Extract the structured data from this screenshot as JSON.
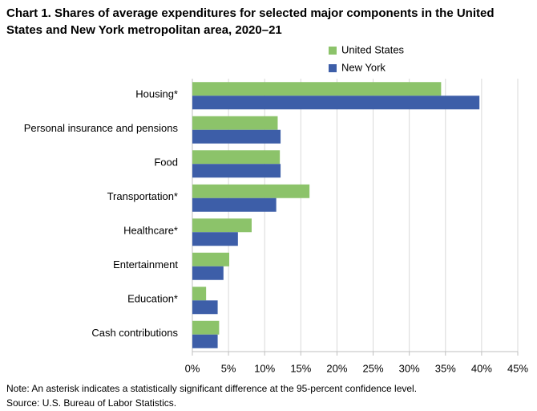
{
  "chart_data": {
    "type": "hbar",
    "title": "Chart 1. Shares of average expenditures for selected major components in the United States and New York metropolitan area, 2020–21",
    "categories": [
      "Housing*",
      "Personal insurance and pensions",
      "Food",
      "Transportation*",
      "Healthcare*",
      "Entertainment",
      "Education*",
      "Cash contributions"
    ],
    "series": [
      {
        "name": "United States",
        "color": "#8cc36a",
        "values": [
          34.4,
          11.8,
          12.1,
          16.2,
          8.2,
          5.1,
          1.9,
          3.7
        ]
      },
      {
        "name": "New York",
        "color": "#3d5ea8",
        "values": [
          39.7,
          12.2,
          12.2,
          11.6,
          6.3,
          4.3,
          3.5,
          3.5
        ]
      }
    ],
    "xlim": [
      0,
      45
    ],
    "xticks": [
      {
        "value": 0,
        "label": "0%"
      },
      {
        "value": 5,
        "label": "5%"
      },
      {
        "value": 10,
        "label": "10%"
      },
      {
        "value": 15,
        "label": "15%"
      },
      {
        "value": 20,
        "label": "20%"
      },
      {
        "value": 25,
        "label": "25%"
      },
      {
        "value": 30,
        "label": "30%"
      },
      {
        "value": 35,
        "label": "35%"
      },
      {
        "value": 40,
        "label": "40%"
      },
      {
        "value": 45,
        "label": "45%"
      }
    ],
    "grid": true,
    "note": "Note: An asterisk indicates a statistically significant difference at the 95-percent confidence level.",
    "source": "Source: U.S. Bureau of Labor Statistics."
  }
}
